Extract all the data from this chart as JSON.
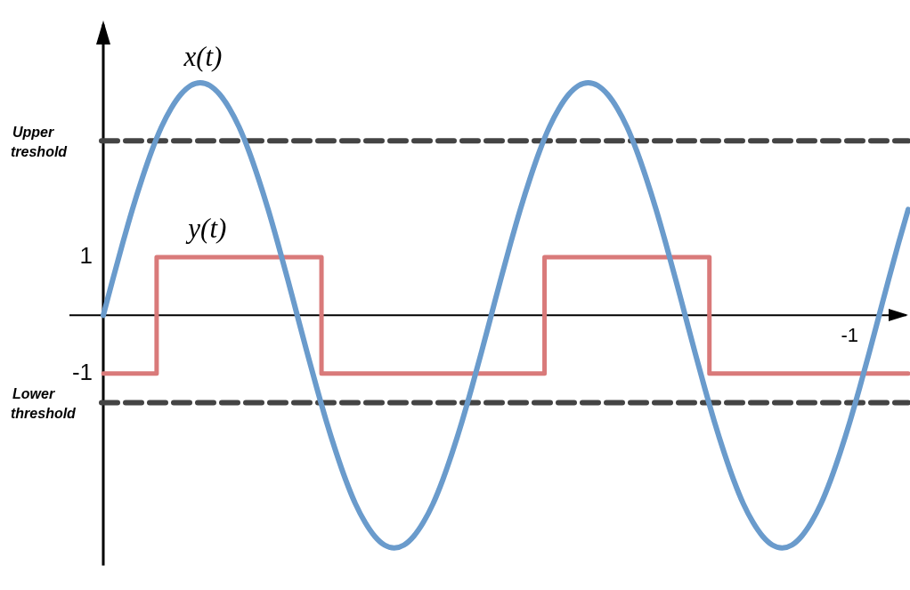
{
  "chart_data": {
    "type": "line",
    "categories": [
      null,
      null,
      null,
      null,
      null,
      null,
      null,
      null,
      null,
      null,
      null,
      null,
      null,
      null,
      null,
      null,
      null,
      null,
      null,
      null,
      null,
      null,
      null,
      null,
      null,
      null,
      null,
      null,
      null,
      null,
      null,
      null,
      null,
      null,
      null,
      null,
      null,
      null,
      null,
      null,
      null,
      null,
      null,
      null,
      null,
      null,
      null,
      null,
      null,
      null,
      null,
      null,
      null,
      null,
      null,
      null,
      null,
      null,
      null,
      null,
      null,
      null,
      null,
      null,
      null,
      null,
      null,
      null,
      null,
      null,
      null,
      null,
      null,
      null,
      null,
      null,
      null,
      null,
      null,
      null,
      null,
      null,
      null,
      null
    ],
    "series": [
      {
        "name": "x(t)",
        "color": "#6a9bcc",
        "values": [
          0,
          0.63,
          1.24,
          1.82,
          2.35,
          2.83,
          3.24,
          3.56,
          3.8,
          3.95,
          4,
          3.95,
          3.8,
          3.56,
          3.24,
          2.83,
          2.35,
          1.82,
          1.24,
          0.63,
          0,
          -0.63,
          -1.24,
          -1.82,
          -2.35,
          -2.83,
          -3.24,
          -3.56,
          -3.8,
          -3.95,
          -4,
          -3.95,
          -3.8,
          -3.56,
          -3.24,
          -2.83,
          -2.35,
          -1.82,
          -1.24,
          -0.63,
          0,
          0.63,
          1.24,
          1.82,
          2.35,
          2.83,
          3.24,
          3.56,
          3.8,
          3.95,
          4,
          3.95,
          3.8,
          3.56,
          3.24,
          2.83,
          2.35,
          1.82,
          1.24,
          0.63,
          0,
          -0.63,
          -1.24,
          -1.82,
          -2.35,
          -2.83,
          -3.24,
          -3.56,
          -3.8,
          -3.95,
          -4,
          -3.95,
          -3.8,
          -3.56,
          -3.24,
          -2.83,
          -2.35,
          -1.82,
          -1.24,
          -0.63,
          0,
          0.63,
          1.24,
          1.82
        ]
      },
      {
        "name": "y(t)",
        "type": "step",
        "color": "#d97a7a",
        "values": [
          -1,
          -1,
          -1,
          -1,
          -1,
          -1,
          1,
          1,
          1,
          1,
          1,
          1,
          1,
          1,
          1,
          1,
          1,
          1,
          1,
          1,
          1,
          1,
          1,
          -1,
          -1,
          -1,
          -1,
          -1,
          -1,
          -1,
          -1,
          -1,
          -1,
          -1,
          -1,
          -1,
          -1,
          -1,
          -1,
          -1,
          -1,
          -1,
          -1,
          -1,
          -1,
          -1,
          1,
          1,
          1,
          1,
          1,
          1,
          1,
          1,
          1,
          1,
          1,
          1,
          1,
          1,
          1,
          1,
          1,
          -1,
          -1,
          -1,
          -1,
          -1,
          -1,
          -1,
          -1,
          -1,
          -1,
          -1,
          -1,
          -1,
          -1,
          -1,
          -1,
          -1,
          -1,
          -1,
          -1,
          -1
        ]
      }
    ],
    "ylim": [
      -4.3,
      5
    ],
    "yticks": [
      -1,
      1
    ],
    "ref_lines": [
      {
        "axis": "y",
        "value": 3,
        "label": "Upper treshold",
        "color": "#444444",
        "line_style": "dashed"
      },
      {
        "axis": "y",
        "value": -1.5,
        "label": "Lower threshold",
        "color": "#444444",
        "line_style": "dashed"
      }
    ],
    "annotations": [
      "-1"
    ],
    "tick_labels": "y",
    "legend": false,
    "grid": false,
    "marker": "none",
    "line_style": "solid"
  }
}
